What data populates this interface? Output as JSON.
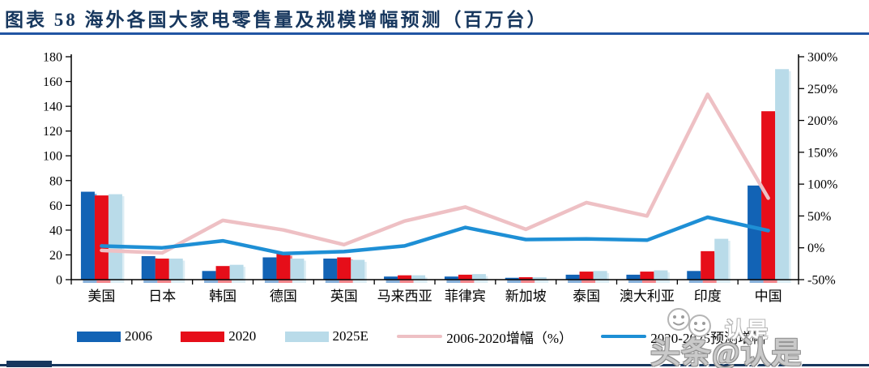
{
  "page": {
    "title": "图表 58  海外各国大家电零售量及规模增幅预测（百万台）"
  },
  "colors": {
    "navy": "#17375e",
    "underline": "#2155a3",
    "bar2006": "#1263b5",
    "bar2020": "#e60e19",
    "bar2025": "#b9dbe9",
    "line0620": "#eec0c4",
    "line2025": "#1e8fd5",
    "axis": "#000000",
    "watermark_gray": "#c9c9c9"
  },
  "legend": {
    "items": [
      {
        "label": "2006",
        "type": "bar",
        "color": "#1263b5"
      },
      {
        "label": "2020",
        "type": "bar",
        "color": "#e60e19"
      },
      {
        "label": "2025E",
        "type": "bar",
        "color": "#b9dbe9"
      },
      {
        "label": "2006-2020增幅（%）",
        "type": "line",
        "color": "#eec0c4"
      },
      {
        "label": "2020-2025预测增幅",
        "type": "line",
        "color": "#1e8fd5"
      }
    ]
  },
  "watermark": {
    "text": "头条@认是",
    "ghost_text": "认是",
    "icon": "smiley-faces"
  },
  "chart_data": {
    "type": "bar",
    "subtype": "grouped bars with two overlay lines on secondary axis",
    "title": "海外各国大家电零售量及规模增幅预测（百万台）",
    "categories": [
      "美国",
      "日本",
      "韩国",
      "德国",
      "英国",
      "马来西亚",
      "菲律宾",
      "新加坡",
      "泰国",
      "澳大利亚",
      "印度",
      "中国"
    ],
    "series": [
      {
        "name": "2006",
        "type": "bar",
        "axis": "left",
        "color": "#1263b5",
        "values": [
          71,
          19,
          7,
          18,
          17,
          2.5,
          2.5,
          1.5,
          4,
          4,
          7,
          76
        ]
      },
      {
        "name": "2020",
        "type": "bar",
        "axis": "left",
        "color": "#e60e19",
        "values": [
          68,
          17,
          11,
          21,
          18,
          3.5,
          4,
          2,
          6.5,
          6.5,
          23,
          136
        ]
      },
      {
        "name": "2025E",
        "type": "bar",
        "axis": "left",
        "color": "#b9dbe9",
        "values": [
          69,
          17,
          12,
          17,
          16,
          3.5,
          4.5,
          2,
          7,
          7.5,
          33,
          170
        ]
      },
      {
        "name": "2006-2020增幅（%）",
        "type": "line",
        "axis": "right",
        "color": "#eec0c4",
        "values": [
          -4,
          -8,
          43,
          28,
          5,
          42,
          64,
          29,
          71,
          50,
          241,
          78
        ]
      },
      {
        "name": "2020-2025预测增幅",
        "type": "line",
        "axis": "right",
        "color": "#1e8fd5",
        "values": [
          3,
          0,
          11,
          -9,
          -6,
          3,
          32,
          13,
          14,
          12,
          48,
          27
        ]
      }
    ],
    "left_axis": {
      "min": 0,
      "max": 180,
      "step": 20,
      "tick_labels": [
        "0",
        "20",
        "40",
        "60",
        "80",
        "100",
        "120",
        "140",
        "160",
        "180"
      ]
    },
    "right_axis": {
      "min": -50,
      "max": 300,
      "step": 50,
      "tick_labels": [
        "-50%",
        "0%",
        "50%",
        "100%",
        "150%",
        "200%",
        "250%",
        "300%"
      ]
    },
    "grid": false,
    "legend_position": "bottom"
  }
}
